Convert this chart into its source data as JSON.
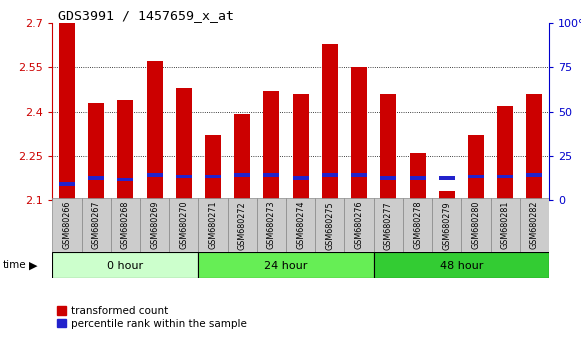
{
  "title": "GDS3991 / 1457659_x_at",
  "samples": [
    "GSM680266",
    "GSM680267",
    "GSM680268",
    "GSM680269",
    "GSM680270",
    "GSM680271",
    "GSM680272",
    "GSM680273",
    "GSM680274",
    "GSM680275",
    "GSM680276",
    "GSM680277",
    "GSM680278",
    "GSM680279",
    "GSM680280",
    "GSM680281",
    "GSM680282"
  ],
  "red_values": [
    2.7,
    2.43,
    2.44,
    2.57,
    2.48,
    2.32,
    2.39,
    2.47,
    2.46,
    2.63,
    2.55,
    2.46,
    2.26,
    2.13,
    2.32,
    2.42,
    2.46
  ],
  "blue_values": [
    2.155,
    2.175,
    2.17,
    2.185,
    2.18,
    2.18,
    2.185,
    2.185,
    2.175,
    2.185,
    2.185,
    2.175,
    2.175,
    2.175,
    2.18,
    2.18,
    2.185
  ],
  "ymin": 2.1,
  "ymax": 2.7,
  "yticks": [
    2.1,
    2.25,
    2.4,
    2.55,
    2.7
  ],
  "right_yticks": [
    0,
    25,
    50,
    75,
    100
  ],
  "groups": [
    {
      "label": "0 hour",
      "start": 0,
      "end": 5
    },
    {
      "label": "24 hour",
      "start": 5,
      "end": 11
    },
    {
      "label": "48 hour",
      "start": 11,
      "end": 17
    }
  ],
  "group_colors": [
    "#ccffcc",
    "#66ee55",
    "#33cc33"
  ],
  "bar_color": "#cc0000",
  "blue_color": "#2222cc",
  "bar_width": 0.55,
  "background_color": "#ffffff",
  "tick_label_color_left": "#cc0000",
  "tick_label_color_right": "#0000cc",
  "xticklabel_bg": "#cccccc"
}
